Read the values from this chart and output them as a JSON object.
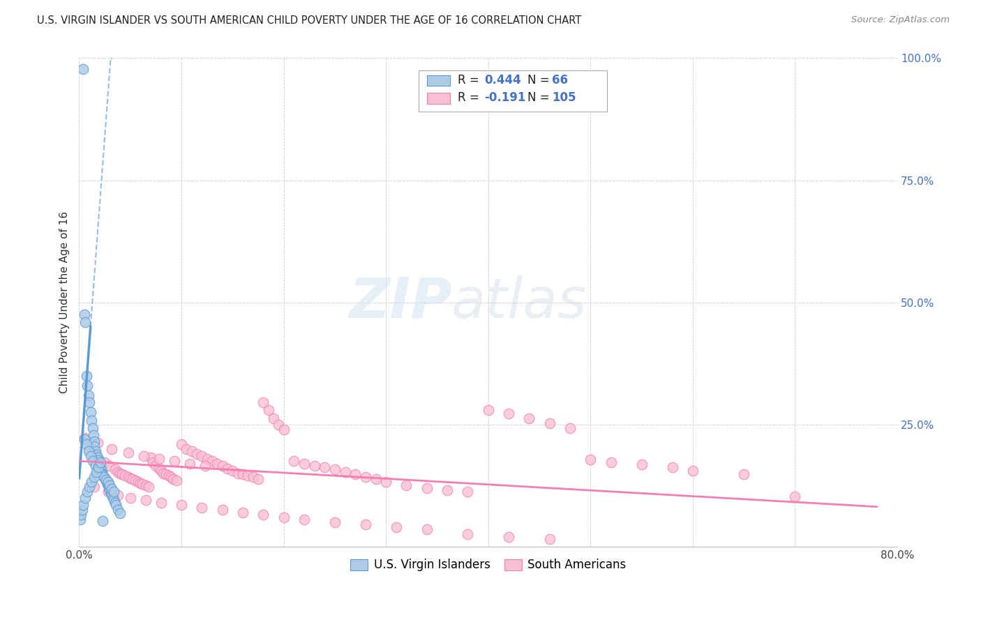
{
  "title": "U.S. VIRGIN ISLANDER VS SOUTH AMERICAN CHILD POVERTY UNDER THE AGE OF 16 CORRELATION CHART",
  "source": "Source: ZipAtlas.com",
  "ylabel": "Child Poverty Under the Age of 16",
  "xlim": [
    0.0,
    0.8
  ],
  "ylim": [
    0.0,
    1.0
  ],
  "xticks": [
    0.0,
    0.1,
    0.2,
    0.3,
    0.4,
    0.5,
    0.6,
    0.7,
    0.8
  ],
  "yticks": [
    0.0,
    0.25,
    0.5,
    0.75,
    1.0
  ],
  "blue_color": "#5b9bd5",
  "pink_color": "#f47eb0",
  "blue_fill": "#aecce8",
  "pink_fill": "#f9c0d4",
  "watermark_color": "#d0e4f4",
  "blue_scatter_x": [
    0.004,
    0.005,
    0.006,
    0.007,
    0.008,
    0.009,
    0.01,
    0.011,
    0.012,
    0.013,
    0.014,
    0.015,
    0.015,
    0.016,
    0.017,
    0.018,
    0.019,
    0.02,
    0.02,
    0.021,
    0.022,
    0.022,
    0.023,
    0.024,
    0.025,
    0.026,
    0.027,
    0.028,
    0.029,
    0.03,
    0.031,
    0.032,
    0.033,
    0.034,
    0.035,
    0.036,
    0.038,
    0.04,
    0.005,
    0.007,
    0.009,
    0.011,
    0.013,
    0.016,
    0.018,
    0.02,
    0.022,
    0.024,
    0.026,
    0.028,
    0.03,
    0.032,
    0.034,
    0.001,
    0.002,
    0.003,
    0.004,
    0.006,
    0.008,
    0.01,
    0.012,
    0.015,
    0.017,
    0.019,
    0.021,
    0.023
  ],
  "blue_scatter_y": [
    0.978,
    0.475,
    0.46,
    0.35,
    0.33,
    0.31,
    0.295,
    0.275,
    0.258,
    0.242,
    0.228,
    0.215,
    0.205,
    0.195,
    0.188,
    0.182,
    0.176,
    0.17,
    0.165,
    0.16,
    0.155,
    0.15,
    0.147,
    0.143,
    0.14,
    0.135,
    0.13,
    0.125,
    0.12,
    0.115,
    0.11,
    0.105,
    0.1,
    0.095,
    0.09,
    0.085,
    0.075,
    0.068,
    0.22,
    0.21,
    0.195,
    0.185,
    0.175,
    0.165,
    0.158,
    0.152,
    0.147,
    0.142,
    0.137,
    0.132,
    0.125,
    0.118,
    0.112,
    0.055,
    0.065,
    0.075,
    0.085,
    0.1,
    0.112,
    0.122,
    0.132,
    0.142,
    0.152,
    0.162,
    0.172,
    0.052
  ],
  "pink_scatter_x": [
    0.01,
    0.018,
    0.025,
    0.03,
    0.035,
    0.038,
    0.04,
    0.042,
    0.045,
    0.048,
    0.05,
    0.052,
    0.055,
    0.058,
    0.06,
    0.062,
    0.065,
    0.068,
    0.07,
    0.072,
    0.075,
    0.078,
    0.08,
    0.082,
    0.085,
    0.088,
    0.09,
    0.092,
    0.095,
    0.1,
    0.105,
    0.11,
    0.115,
    0.12,
    0.125,
    0.13,
    0.135,
    0.14,
    0.145,
    0.15,
    0.155,
    0.16,
    0.165,
    0.17,
    0.175,
    0.18,
    0.185,
    0.19,
    0.195,
    0.2,
    0.21,
    0.22,
    0.23,
    0.24,
    0.25,
    0.26,
    0.27,
    0.28,
    0.29,
    0.3,
    0.32,
    0.34,
    0.36,
    0.38,
    0.4,
    0.42,
    0.44,
    0.46,
    0.48,
    0.5,
    0.52,
    0.55,
    0.58,
    0.6,
    0.65,
    0.7,
    0.015,
    0.028,
    0.038,
    0.05,
    0.065,
    0.08,
    0.1,
    0.12,
    0.14,
    0.16,
    0.18,
    0.2,
    0.22,
    0.25,
    0.28,
    0.31,
    0.34,
    0.38,
    0.42,
    0.46,
    0.005,
    0.018,
    0.032,
    0.048,
    0.063,
    0.078,
    0.093,
    0.108,
    0.123
  ],
  "pink_scatter_y": [
    0.2,
    0.182,
    0.172,
    0.165,
    0.158,
    0.152,
    0.15,
    0.148,
    0.145,
    0.142,
    0.14,
    0.138,
    0.135,
    0.132,
    0.13,
    0.128,
    0.125,
    0.122,
    0.182,
    0.172,
    0.165,
    0.16,
    0.155,
    0.15,
    0.148,
    0.145,
    0.142,
    0.138,
    0.135,
    0.21,
    0.2,
    0.195,
    0.19,
    0.185,
    0.18,
    0.175,
    0.17,
    0.165,
    0.16,
    0.155,
    0.15,
    0.148,
    0.145,
    0.142,
    0.138,
    0.295,
    0.28,
    0.262,
    0.25,
    0.24,
    0.175,
    0.17,
    0.165,
    0.162,
    0.158,
    0.152,
    0.148,
    0.142,
    0.138,
    0.132,
    0.125,
    0.12,
    0.115,
    0.112,
    0.28,
    0.272,
    0.262,
    0.252,
    0.242,
    0.178,
    0.172,
    0.168,
    0.162,
    0.155,
    0.148,
    0.102,
    0.122,
    0.112,
    0.105,
    0.1,
    0.095,
    0.09,
    0.085,
    0.08,
    0.075,
    0.07,
    0.065,
    0.06,
    0.055,
    0.05,
    0.045,
    0.04,
    0.035,
    0.025,
    0.02,
    0.015,
    0.222,
    0.212,
    0.2,
    0.192,
    0.185,
    0.18,
    0.175,
    0.17,
    0.165
  ],
  "blue_reg_slope": 28.0,
  "blue_reg_intercept": 0.14,
  "pink_reg_slope": -0.12,
  "pink_reg_intercept": 0.175
}
